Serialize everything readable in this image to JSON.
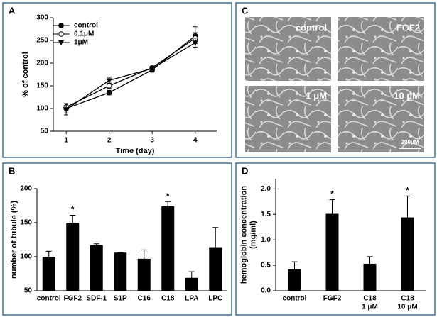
{
  "chart_data": [
    {
      "type": "line",
      "panel": "A",
      "xlabel": "Time (day)",
      "ylabel": [
        "% of control"
      ],
      "x": [
        1,
        2,
        3,
        4
      ],
      "xlim": [
        0.7,
        4.5
      ],
      "xticks": [
        1,
        2,
        3,
        4
      ],
      "ylim": [
        50,
        300
      ],
      "yticks": [
        50,
        100,
        150,
        200,
        250,
        300
      ],
      "series": [
        {
          "name": "control",
          "color": "#000000",
          "marker": "circle",
          "values": [
            100,
            135,
            185,
            260
          ],
          "errors": [
            10,
            5,
            5,
            20
          ]
        },
        {
          "name": "0.1μM",
          "color": "#000000",
          "marker": "open-circle",
          "values": [
            103,
            150,
            190,
            255
          ],
          "errors": [
            8,
            6,
            6,
            12
          ]
        },
        {
          "name": "1μM",
          "color": "#000000",
          "marker": "triangle-down",
          "values": [
            98,
            162,
            188,
            245
          ],
          "errors": [
            12,
            7,
            5,
            10
          ]
        }
      ]
    },
    {
      "type": "bar",
      "panel": "B",
      "ylabel": [
        "number of tubule (%)"
      ],
      "color": "#000000",
      "categories": [
        "control",
        "FGF2",
        "SDF-1",
        "S1P",
        "C16",
        "C18",
        "LPA",
        "LPC"
      ],
      "values": [
        100,
        150,
        117,
        106,
        97,
        174,
        69,
        114
      ],
      "errors": [
        8,
        11,
        2,
        0,
        13,
        7,
        9,
        29
      ],
      "significance": [
        null,
        "*",
        null,
        null,
        null,
        "*",
        null,
        null
      ],
      "ylim": [
        50,
        200
      ],
      "yticks": [
        50,
        100,
        150,
        200
      ]
    },
    {
      "type": "bar",
      "panel": "D",
      "ylabel": [
        "hemoglobin concentration",
        "(mg/ml)"
      ],
      "color": "#000000",
      "categories": [
        [
          "control"
        ],
        [
          "FGF2"
        ],
        [
          "C18",
          "1 μM"
        ],
        [
          "C18",
          "10 μM"
        ]
      ],
      "values": [
        0.42,
        1.51,
        0.53,
        1.44
      ],
      "errors": [
        0.15,
        0.28,
        0.14,
        0.42
      ],
      "significance": [
        null,
        "*",
        null,
        "*"
      ],
      "ylim": [
        0,
        2.2
      ],
      "yticks": [
        {
          "value": 0,
          "label": "0.0"
        },
        0.5,
        {
          "value": 1,
          "label": "1.0"
        },
        1.5,
        {
          "value": 2,
          "label": "2.0"
        }
      ]
    }
  ],
  "micrographs": {
    "panel": "C",
    "labels": [
      "control",
      "FGF2",
      "1 μM",
      "10 μM"
    ],
    "scale_bar": "200μM"
  }
}
